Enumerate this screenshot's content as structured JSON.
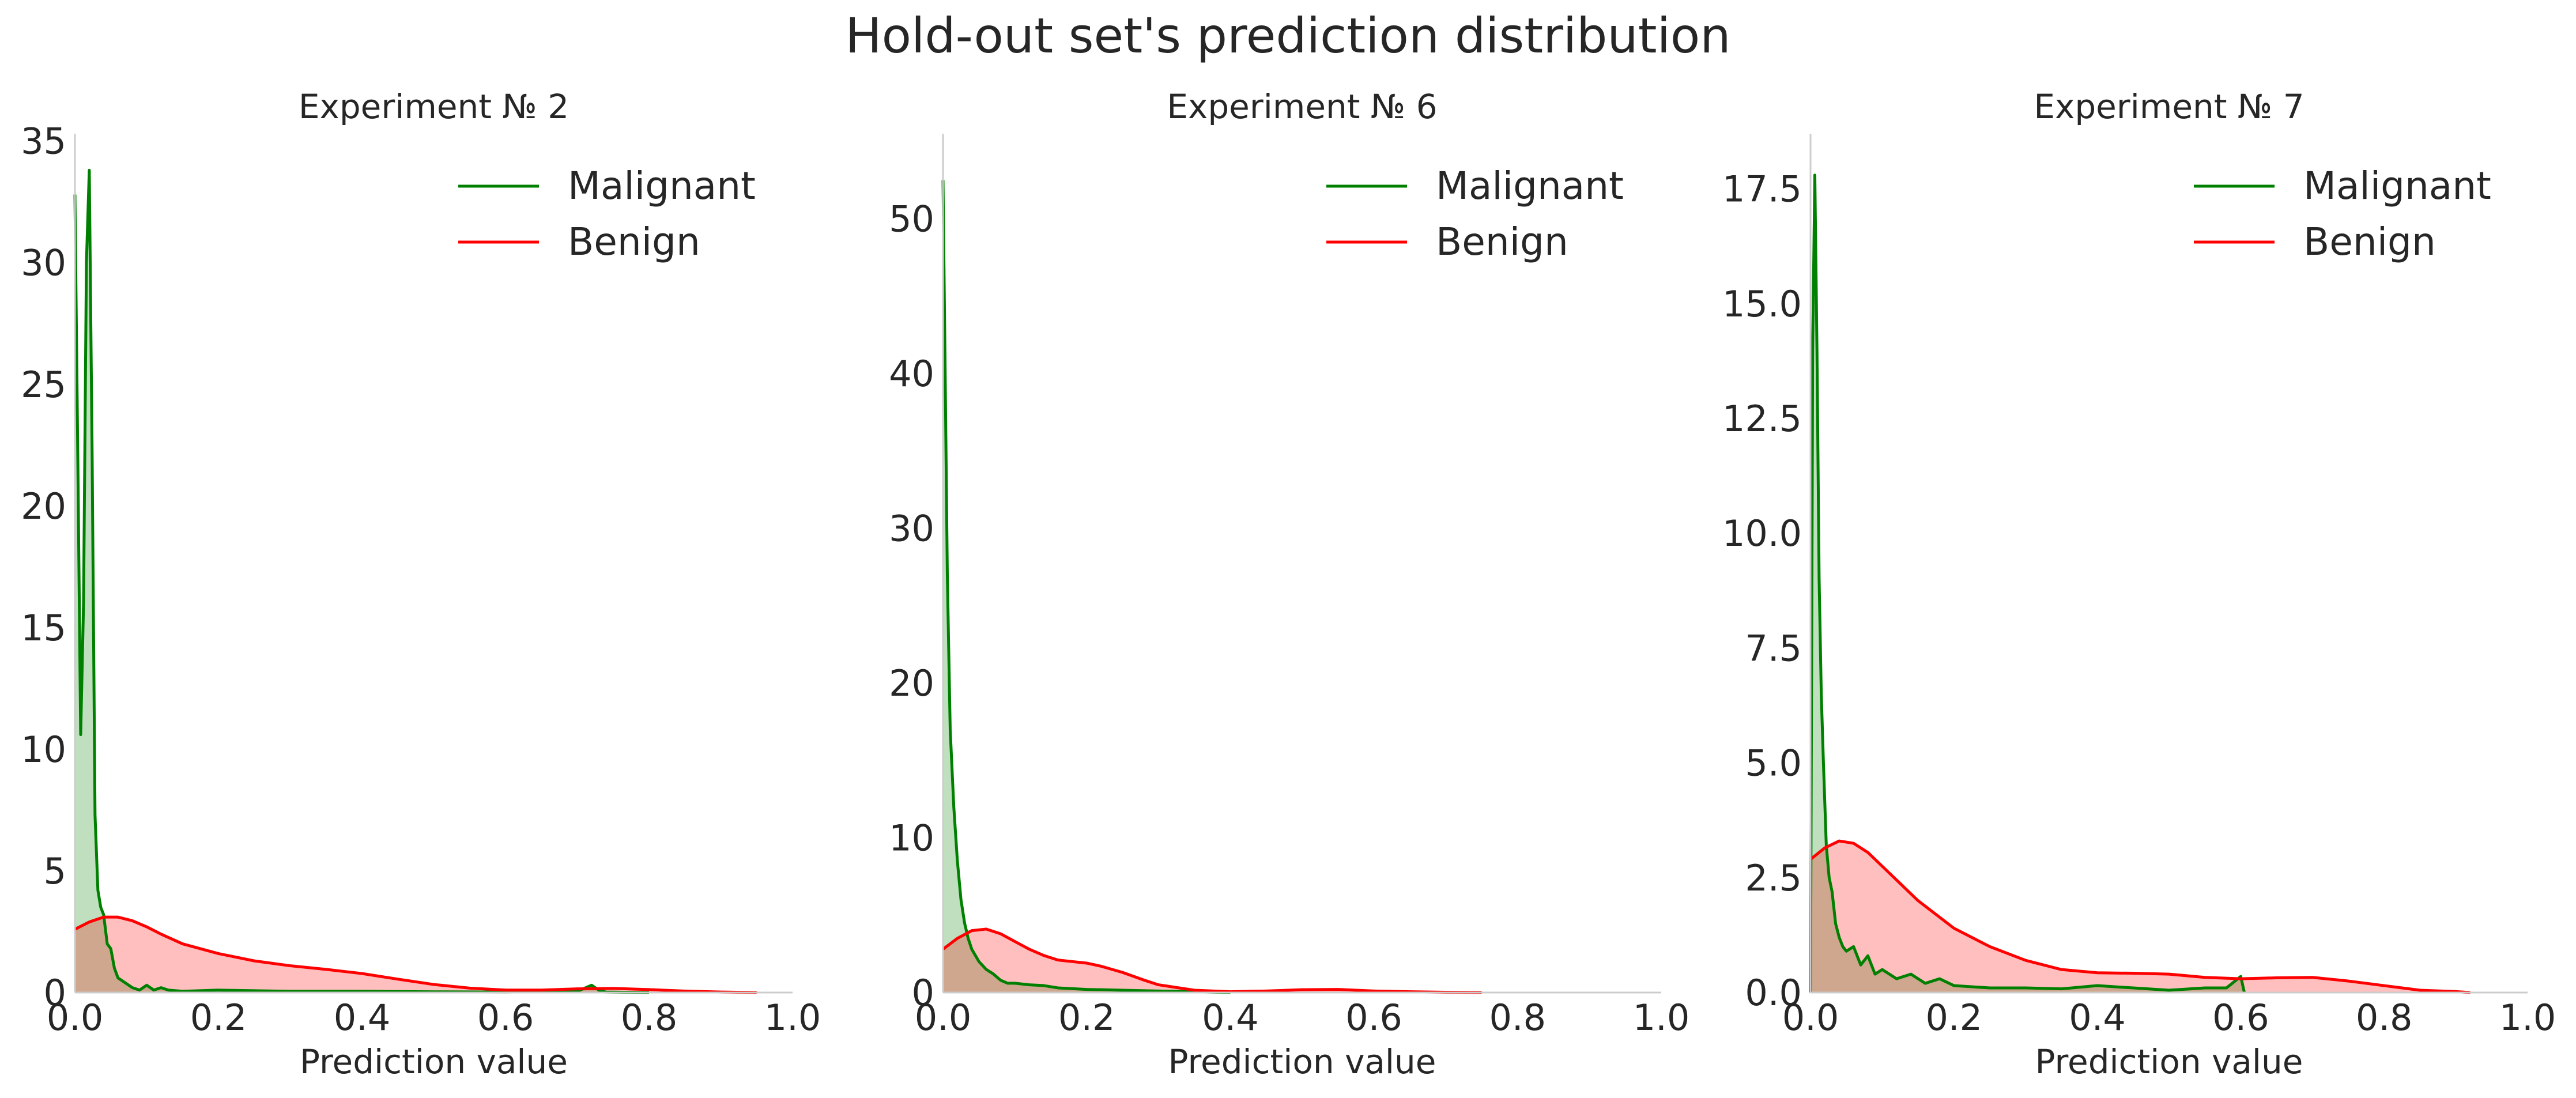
{
  "figure": {
    "title": "Hold-out set's prediction distribution"
  },
  "colors": {
    "malignant": "#008000",
    "benign": "#ff0000",
    "malignant_fill": "#008000",
    "benign_fill": "#ff0000",
    "axis": "#cccccc"
  },
  "chart_data": [
    {
      "type": "area",
      "title": "Experiment № 2",
      "xlabel": "Prediction value",
      "ylabel": "",
      "xlim": [
        0,
        1
      ],
      "ylim": [
        0,
        35.3
      ],
      "xticks": [
        "0.0",
        "0.2",
        "0.4",
        "0.6",
        "0.8",
        "1.0"
      ],
      "yticks": [
        0,
        5,
        10,
        15,
        20,
        25,
        30,
        35
      ],
      "ytick_labels": [
        "0",
        "5",
        "10",
        "15",
        "20",
        "25",
        "30",
        "35"
      ],
      "grid": false,
      "legend_position": "top-right",
      "series": [
        {
          "name": "Malignant",
          "color": "#008000",
          "x": [
            0,
            0.004,
            0.008,
            0.012,
            0.016,
            0.02,
            0.024,
            0.028,
            0.032,
            0.036,
            0.04,
            0.045,
            0.05,
            0.055,
            0.06,
            0.07,
            0.08,
            0.09,
            0.1,
            0.11,
            0.12,
            0.13,
            0.15,
            0.2,
            0.3,
            0.4,
            0.5,
            0.6,
            0.7,
            0.72,
            0.73,
            0.74,
            0.8
          ],
          "y": [
            32.8,
            22,
            10.6,
            16,
            30,
            33.8,
            22,
            7.3,
            4.2,
            3.5,
            3.2,
            2.0,
            1.8,
            1.0,
            0.6,
            0.4,
            0.2,
            0.1,
            0.3,
            0.1,
            0.2,
            0.1,
            0.05,
            0.1,
            0.05,
            0.05,
            0.03,
            0.02,
            0.05,
            0.3,
            0.1,
            0.02,
            0
          ]
        },
        {
          "name": "Benign",
          "color": "#ff0000",
          "x": [
            0,
            0.02,
            0.04,
            0.06,
            0.08,
            0.1,
            0.12,
            0.15,
            0.2,
            0.25,
            0.3,
            0.35,
            0.4,
            0.45,
            0.5,
            0.55,
            0.6,
            0.65,
            0.7,
            0.75,
            0.8,
            0.85,
            0.9,
            0.95
          ],
          "y": [
            2.6,
            2.9,
            3.1,
            3.1,
            2.95,
            2.7,
            2.4,
            2.0,
            1.6,
            1.3,
            1.1,
            0.95,
            0.78,
            0.55,
            0.33,
            0.18,
            0.1,
            0.1,
            0.15,
            0.17,
            0.12,
            0.06,
            0.02,
            0
          ]
        }
      ]
    },
    {
      "type": "area",
      "title": "Experiment № 6",
      "xlabel": "Prediction value",
      "ylabel": "",
      "xlim": [
        0,
        1
      ],
      "ylim": [
        0,
        55.5
      ],
      "xticks": [
        "0.0",
        "0.2",
        "0.4",
        "0.6",
        "0.8",
        "1.0"
      ],
      "yticks": [
        0,
        10,
        20,
        30,
        40,
        50
      ],
      "ytick_labels": [
        "0",
        "10",
        "20",
        "30",
        "40",
        "50"
      ],
      "grid": false,
      "legend_position": "top-right",
      "series": [
        {
          "name": "Malignant",
          "color": "#008000",
          "x": [
            0,
            0.003,
            0.006,
            0.01,
            0.015,
            0.02,
            0.025,
            0.03,
            0.035,
            0.04,
            0.05,
            0.06,
            0.07,
            0.08,
            0.09,
            0.1,
            0.12,
            0.14,
            0.16,
            0.2,
            0.25,
            0.3,
            0.35,
            0.4
          ],
          "y": [
            52.5,
            40,
            27,
            17,
            12,
            8.5,
            6,
            4.5,
            3.5,
            2.8,
            2.0,
            1.5,
            1.2,
            0.8,
            0.6,
            0.6,
            0.5,
            0.45,
            0.3,
            0.2,
            0.15,
            0.1,
            0.05,
            0
          ]
        },
        {
          "name": "Benign",
          "color": "#ff0000",
          "x": [
            0,
            0.02,
            0.04,
            0.06,
            0.08,
            0.1,
            0.12,
            0.14,
            0.16,
            0.18,
            0.2,
            0.22,
            0.25,
            0.28,
            0.3,
            0.35,
            0.4,
            0.45,
            0.5,
            0.55,
            0.6,
            0.65,
            0.7,
            0.75
          ],
          "y": [
            2.8,
            3.5,
            4.0,
            4.1,
            3.8,
            3.3,
            2.8,
            2.4,
            2.1,
            2.0,
            1.9,
            1.7,
            1.3,
            0.8,
            0.5,
            0.15,
            0.05,
            0.1,
            0.18,
            0.2,
            0.1,
            0.05,
            0.02,
            0
          ]
        }
      ]
    },
    {
      "type": "area",
      "title": "Experiment № 7",
      "xlabel": "Prediction value",
      "ylabel": "",
      "xlim": [
        0,
        1
      ],
      "ylim": [
        0,
        18.7
      ],
      "xticks": [
        "0.0",
        "0.2",
        "0.4",
        "0.6",
        "0.8",
        "1.0"
      ],
      "yticks": [
        0,
        2.5,
        5.0,
        7.5,
        10.0,
        12.5,
        15.0,
        17.5
      ],
      "ytick_labels": [
        "0.0",
        "2.5",
        "5.0",
        "7.5",
        "10.0",
        "12.5",
        "15.0",
        "17.5"
      ],
      "grid": false,
      "legend_position": "top-right",
      "series": [
        {
          "name": "Malignant",
          "color": "#008000",
          "x": [
            0,
            0.003,
            0.006,
            0.009,
            0.012,
            0.015,
            0.018,
            0.022,
            0.026,
            0.03,
            0.035,
            0.04,
            0.045,
            0.05,
            0.06,
            0.07,
            0.08,
            0.09,
            0.1,
            0.12,
            0.14,
            0.16,
            0.18,
            0.2,
            0.25,
            0.3,
            0.35,
            0.4,
            0.45,
            0.5,
            0.55,
            0.58,
            0.6,
            0.605
          ],
          "y": [
            0,
            14,
            17.8,
            14,
            9,
            6.5,
            5,
            3.2,
            2.5,
            2.2,
            1.5,
            1.2,
            1.0,
            0.9,
            1.0,
            0.6,
            0.8,
            0.4,
            0.5,
            0.3,
            0.4,
            0.2,
            0.3,
            0.15,
            0.1,
            0.1,
            0.08,
            0.15,
            0.1,
            0.05,
            0.1,
            0.1,
            0.35,
            0
          ]
        },
        {
          "name": "Benign",
          "color": "#ff0000",
          "x": [
            0,
            0.02,
            0.04,
            0.06,
            0.08,
            0.1,
            0.12,
            0.15,
            0.2,
            0.25,
            0.3,
            0.35,
            0.4,
            0.45,
            0.5,
            0.55,
            0.6,
            0.65,
            0.7,
            0.75,
            0.8,
            0.85,
            0.9,
            0.92
          ],
          "y": [
            2.9,
            3.15,
            3.3,
            3.25,
            3.05,
            2.75,
            2.45,
            2.0,
            1.4,
            1.0,
            0.7,
            0.5,
            0.43,
            0.42,
            0.4,
            0.33,
            0.3,
            0.32,
            0.33,
            0.25,
            0.15,
            0.05,
            0.02,
            0
          ]
        }
      ]
    }
  ]
}
